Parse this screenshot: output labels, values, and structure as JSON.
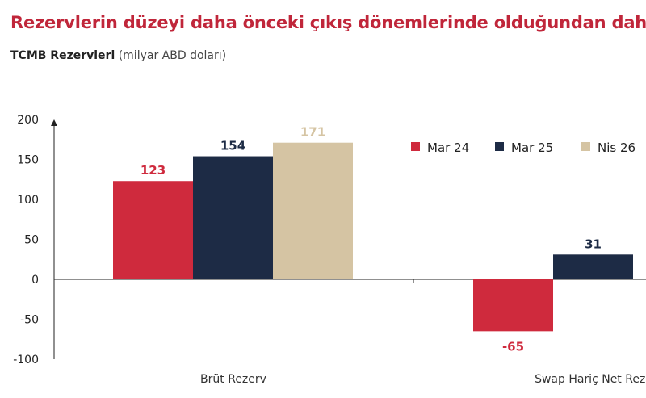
{
  "header": {
    "title": "Rezervlerin düzeyi daha önceki çıkış dönemlerinde olduğundan daha",
    "subtitle_bold": "TCMB Rezervleri",
    "subtitle_rest": "(milyar ABD doları)"
  },
  "colors": {
    "title": "#c0263a",
    "mar24": "#cf2a3d",
    "mar25": "#1d2b45",
    "nis26": "#d5c4a3",
    "axis": "#222222"
  },
  "chart_data": {
    "type": "bar",
    "categories": [
      "Brüt Rezerv",
      "Swap Hariç Net Rezerv"
    ],
    "category_labels_visible": [
      "Brüt Rezerv",
      "Swap Hariç Net Reze"
    ],
    "series": [
      {
        "name": "Mar 24",
        "values": [
          123,
          -65
        ]
      },
      {
        "name": "Mar 25",
        "values": [
          154,
          31
        ]
      },
      {
        "name": "Nis 26",
        "values": [
          171,
          null
        ]
      }
    ],
    "yticks": [
      200,
      150,
      100,
      50,
      0,
      -50,
      -100
    ],
    "ylim": [
      -100,
      200
    ],
    "data_labels": [
      [
        "123",
        "-65"
      ],
      [
        "154",
        "31"
      ],
      [
        "171",
        ""
      ]
    ],
    "legend": "top-right",
    "grid": false
  }
}
